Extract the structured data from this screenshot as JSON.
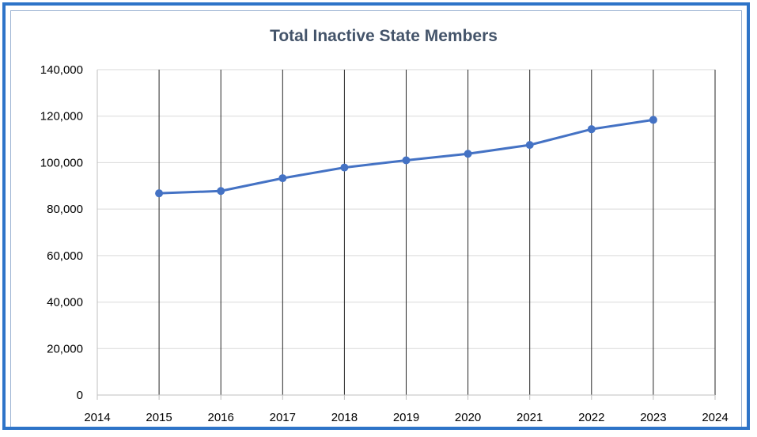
{
  "chart_data": {
    "type": "line",
    "title": "Total Inactive State Members",
    "xlabel": "",
    "ylabel": "",
    "xlim": [
      2014,
      2024
    ],
    "ylim": [
      0,
      140000
    ],
    "x_ticks": [
      "2014",
      "2015",
      "2016",
      "2017",
      "2018",
      "2019",
      "2020",
      "2021",
      "2022",
      "2023",
      "2024"
    ],
    "y_ticks": [
      "0",
      "20,000",
      "40,000",
      "60,000",
      "80,000",
      "100,000",
      "120,000",
      "140,000"
    ],
    "grid": "both",
    "legend": "none",
    "series": [
      {
        "x": [
          2015,
          2016,
          2017,
          2018,
          2019,
          2020,
          2021,
          2022,
          2023
        ],
        "values": [
          86800,
          87800,
          93300,
          97900,
          101000,
          103800,
          107600,
          114400,
          118400
        ],
        "color": "#4472c4"
      }
    ]
  }
}
